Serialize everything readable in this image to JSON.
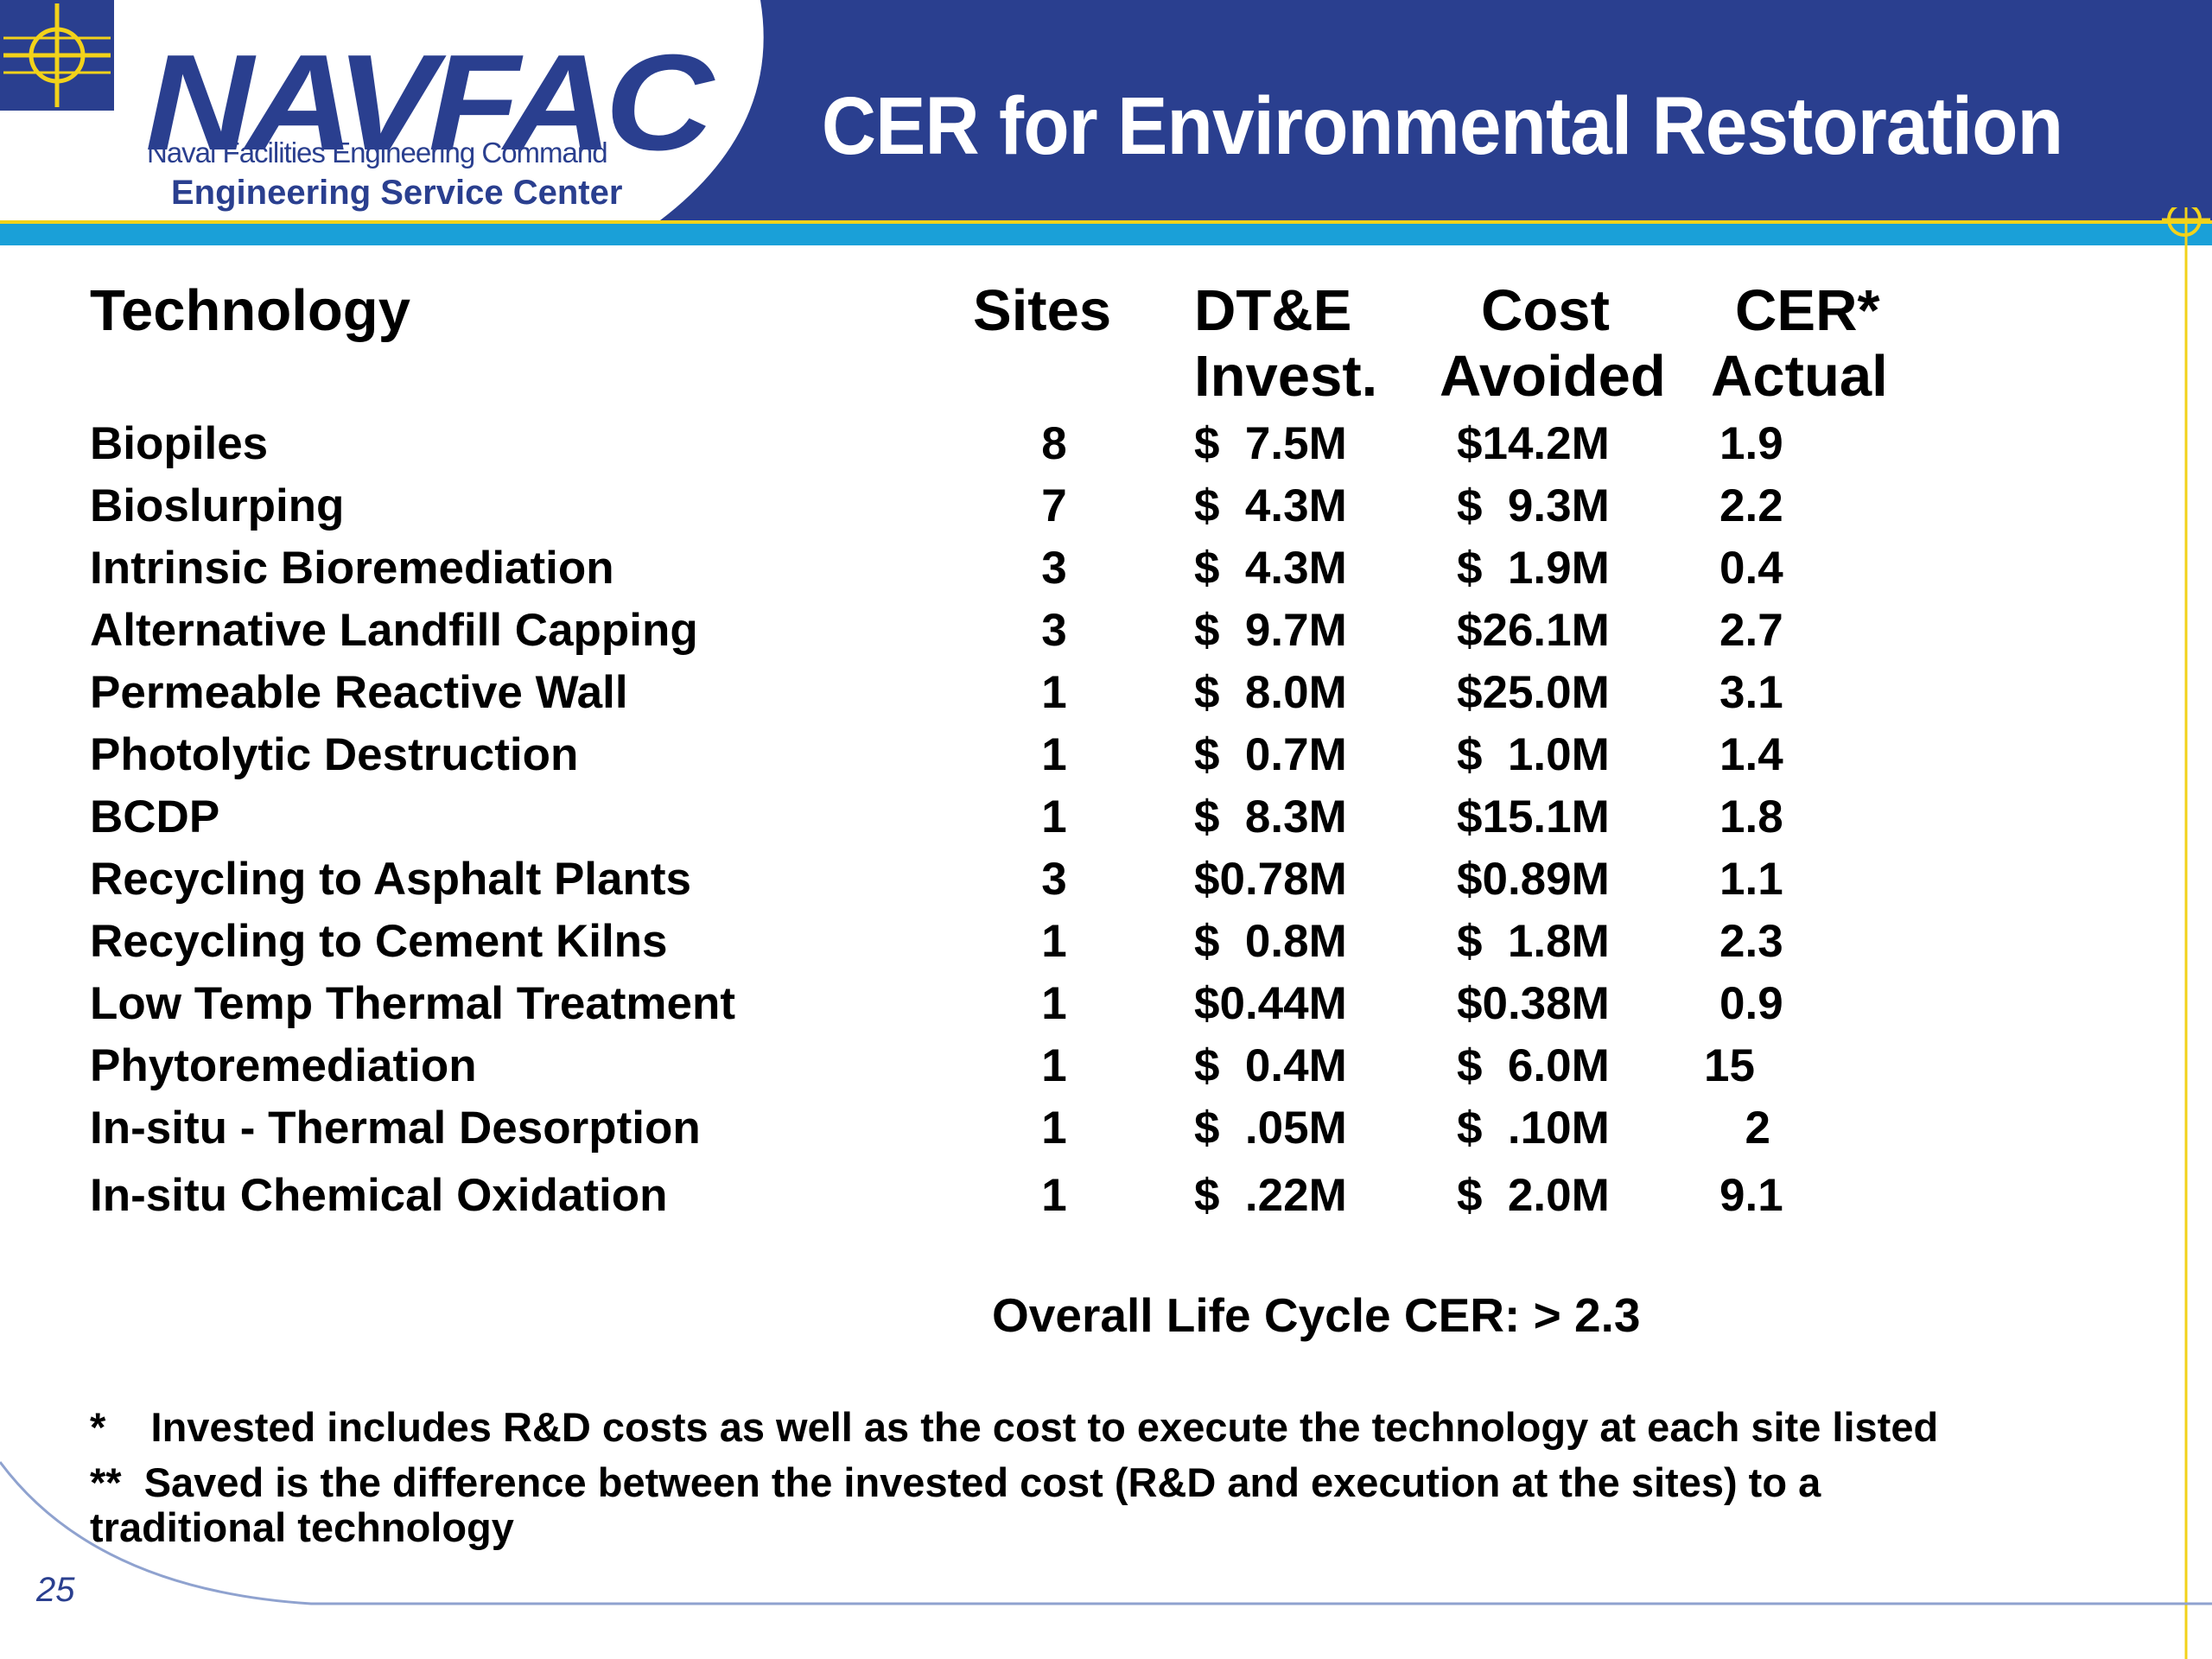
{
  "header": {
    "title": "CER for Environmental Restoration",
    "logo_text": "NAVFAC",
    "logo_subtitle": "Naval Facilities Engineering Command",
    "logo_division": "Engineering Service Center"
  },
  "colors": {
    "banner": "#2a3f8f",
    "accent_cyan": "#1aa0d8",
    "accent_yellow": "#f2d21a"
  },
  "table": {
    "columns": {
      "technology": "Technology",
      "sites": "Sites",
      "invest_line1": "DT&E",
      "invest_line2": "Invest.",
      "cost_line1": "Cost",
      "cost_line2": "Avoided",
      "cer_line1": "CER*",
      "cer_line2": "Actual"
    },
    "rows": [
      {
        "technology": "Biopiles",
        "sites": "8",
        "invest": "$  7.5M",
        "cost": "$14.2M",
        "cer": "1.9"
      },
      {
        "technology": "Bioslurping",
        "sites": "7",
        "invest": "$  4.3M",
        "cost": "$  9.3M",
        "cer": "2.2"
      },
      {
        "technology": "Intrinsic Bioremediation",
        "sites": "3",
        "invest": "$  4.3M",
        "cost": "$  1.9M",
        "cer": "0.4"
      },
      {
        "technology": "Alternative Landfill Capping",
        "sites": "3",
        "invest": "$  9.7M",
        "cost": "$26.1M",
        "cer": "2.7"
      },
      {
        "technology": "Permeable Reactive Wall",
        "sites": "1",
        "invest": "$  8.0M",
        "cost": "$25.0M",
        "cer": "3.1"
      },
      {
        "technology": "Photolytic Destruction",
        "sites": "1",
        "invest": "$  0.7M",
        "cost": "$  1.0M",
        "cer": "1.4"
      },
      {
        "technology": "BCDP",
        "sites": "1",
        "invest": "$  8.3M",
        "cost": "$15.1M",
        "cer": "1.8"
      },
      {
        "technology": "Recycling to Asphalt Plants",
        "sites": "3",
        "invest": "$0.78M",
        "cost": "$0.89M",
        "cer": "1.1"
      },
      {
        "technology": "Recycling to Cement Kilns",
        "sites": "1",
        "invest": "$  0.8M",
        "cost": "$  1.8M",
        "cer": "2.3"
      },
      {
        "technology": "Low Temp Thermal Treatment",
        "sites": "1",
        "invest": "$0.44M",
        "cost": "$0.38M",
        "cer": "0.9"
      },
      {
        "technology": "Phytoremediation",
        "sites": "1",
        "invest": "$  0.4M",
        "cost": "$  6.0M",
        "cer": "15"
      },
      {
        "technology": "In-situ - Thermal Desorption",
        "sites": "1",
        "invest": "$  .05M",
        "cost": "$  .10M",
        "cer": "  2"
      },
      {
        "technology": "In-situ Chemical Oxidation",
        "sites": "1",
        "invest": "$  .22M",
        "cost": "$  2.0M",
        "cer": "9.1"
      }
    ]
  },
  "overall": "Overall Life Cycle CER: > 2.3",
  "footnotes": {
    "note1": "*    Invested includes R&D costs as well as the cost to execute the technology at each site listed",
    "note2": "**  Saved is the difference between the invested cost (R&D and execution at the sites) to a",
    "note3": "traditional technology"
  },
  "page_number": "25"
}
